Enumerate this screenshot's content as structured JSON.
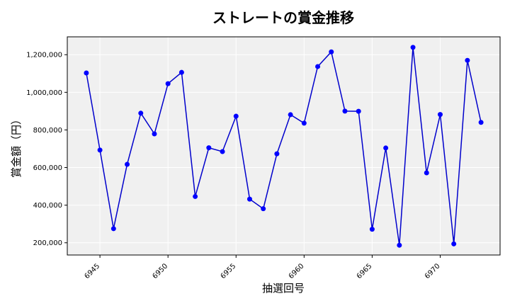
{
  "chart_data": {
    "type": "line",
    "title": "ストレートの賞金推移",
    "xlabel": "抽選回号",
    "ylabel": "賞金額（円）",
    "grid": true,
    "legend": "none",
    "colors": {
      "line": "#0000cc",
      "marker": "#0000ff",
      "plot_bg": "#f0f0f0",
      "grid": "#ffffff"
    },
    "xlim": [
      6942.6,
      6974.4
    ],
    "ylim": [
      135000,
      1295000
    ],
    "x_ticks": [
      6945,
      6950,
      6955,
      6960,
      6965,
      6970
    ],
    "x_tick_labels": [
      "6945",
      "6950",
      "6955",
      "6960",
      "6965",
      "6970"
    ],
    "y_ticks": [
      200000,
      400000,
      600000,
      800000,
      1000000,
      1200000
    ],
    "y_tick_labels": [
      "200,000",
      "400,000",
      "600,000",
      "800,000",
      "1,000,000",
      "1,200,000"
    ],
    "x": [
      6944,
      6945,
      6946,
      6947,
      6948,
      6949,
      6950,
      6951,
      6952,
      6953,
      6954,
      6955,
      6956,
      6957,
      6958,
      6959,
      6960,
      6961,
      6962,
      6963,
      6964,
      6965,
      6966,
      6967,
      6968,
      6969,
      6970,
      6971,
      6972,
      6973
    ],
    "values": [
      1103000,
      693000,
      275000,
      617000,
      889000,
      779000,
      1046000,
      1106000,
      446000,
      705000,
      685000,
      873000,
      432000,
      381000,
      673000,
      881000,
      836000,
      1137000,
      1215000,
      900000,
      899000,
      272000,
      704000,
      187000,
      1239000,
      572000,
      882000,
      194000,
      1170000,
      840000
    ]
  }
}
